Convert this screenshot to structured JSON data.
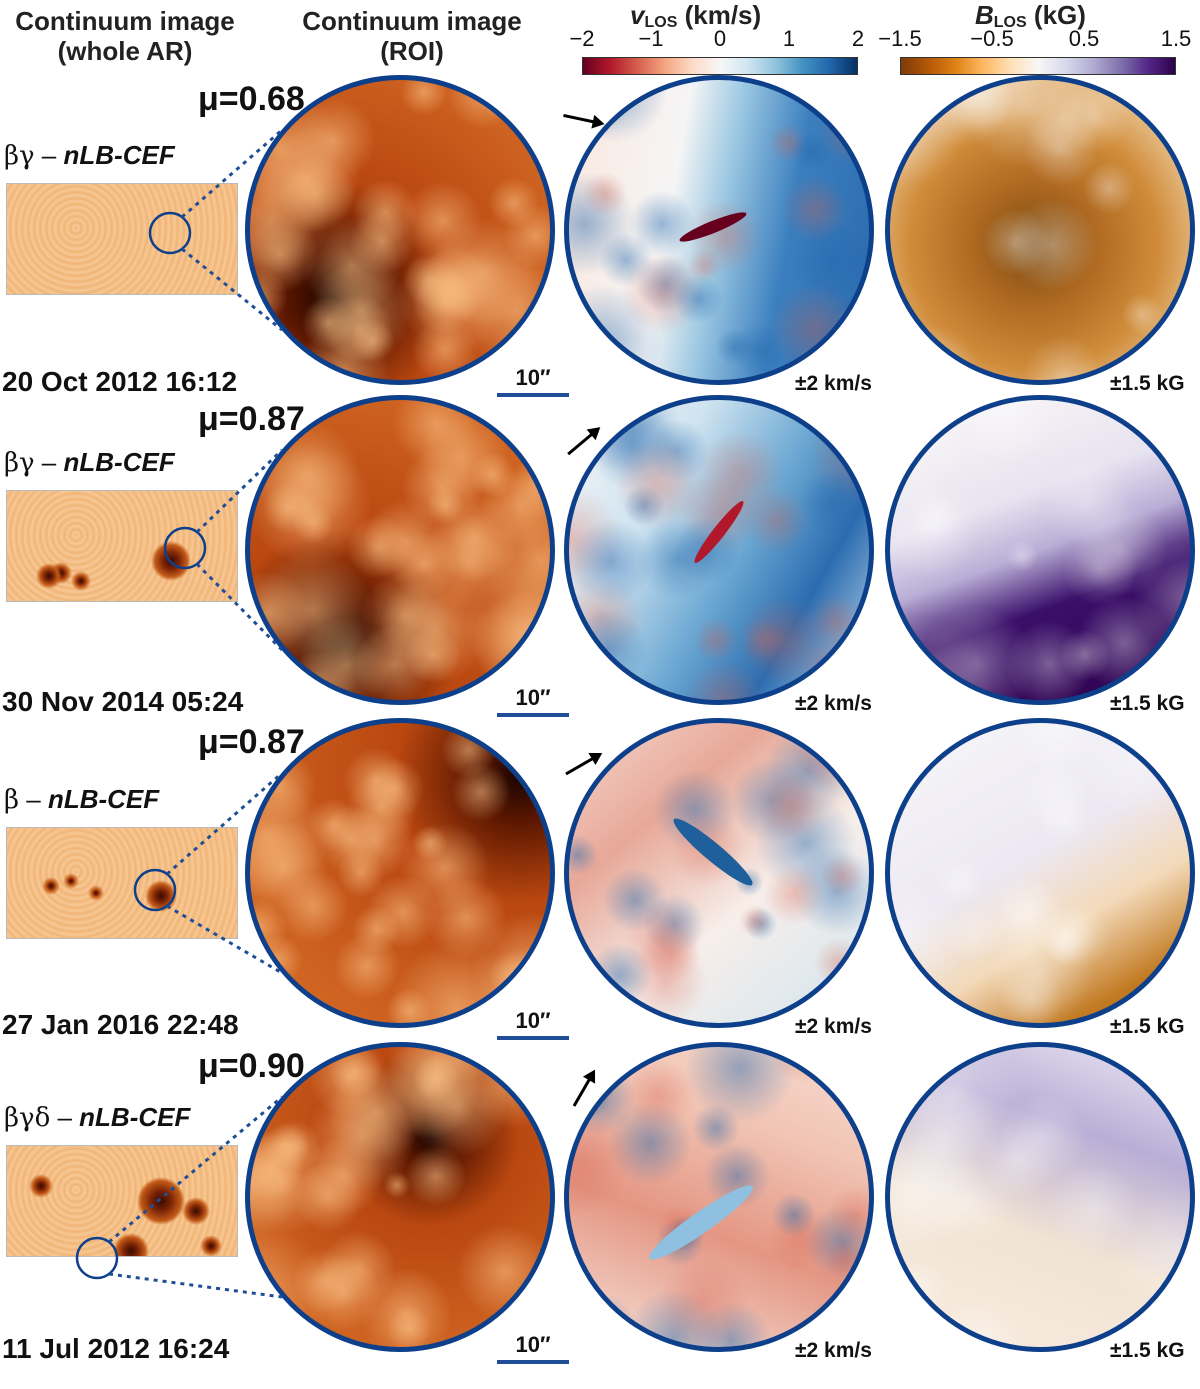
{
  "headers": {
    "col1": [
      "Continuum image",
      "(whole AR)"
    ],
    "col2": [
      "Continuum image",
      "(ROI)"
    ]
  },
  "colorbars": {
    "vlos": {
      "var": "v",
      "sub": "LOS",
      "unit": "(km/s)",
      "ticks": [
        "−2",
        "−1",
        "0",
        "1",
        "2"
      ],
      "colors": [
        "#67001f",
        "#b2182b",
        "#d6604d",
        "#f4a582",
        "#fddbc7",
        "#f7f7f7",
        "#d1e5f0",
        "#92c5de",
        "#4393c3",
        "#2166ac",
        "#053061"
      ]
    },
    "blos": {
      "var": "B",
      "sub": "LOS",
      "unit": "(kG)",
      "ticks": [
        "−1.5",
        "−0.5",
        "0.5",
        "1.5"
      ],
      "colors": [
        "#7f3b08",
        "#b35806",
        "#e08214",
        "#fdb863",
        "#fee0b6",
        "#f7f7f7",
        "#d8daeb",
        "#b2abd2",
        "#8073ac",
        "#542788",
        "#2d004b"
      ]
    }
  },
  "rows": [
    {
      "mu": "μ=0.68",
      "class_greek": "βγ",
      "class_tag": "nLB-CEF",
      "date": "20 Oct 2012 16:12",
      "scale": "10′′",
      "v_range": "±2 km/s",
      "b_range": "±1.5 kG",
      "arrow": "right"
    },
    {
      "mu": "μ=0.87",
      "class_greek": "βγ",
      "class_tag": "nLB-CEF",
      "date": "30 Nov 2014 05:24",
      "scale": "10′′",
      "v_range": "±2 km/s",
      "b_range": "±1.5 kG",
      "arrow": "up-right-steep"
    },
    {
      "mu": "μ=0.87",
      "class_greek": "β",
      "class_tag": "nLB-CEF",
      "date": "27 Jan 2016 22:48",
      "scale": "10′′",
      "v_range": "±2 km/s",
      "b_range": "±1.5 kG",
      "arrow": "up-right"
    },
    {
      "mu": "μ=0.90",
      "class_greek": "βγδ",
      "class_tag": "nLB-CEF",
      "date": "11 Jul 2012 16:24",
      "scale": "10′′",
      "v_range": "±2 km/s",
      "b_range": "±1.5 kG",
      "arrow": "up"
    }
  ]
}
